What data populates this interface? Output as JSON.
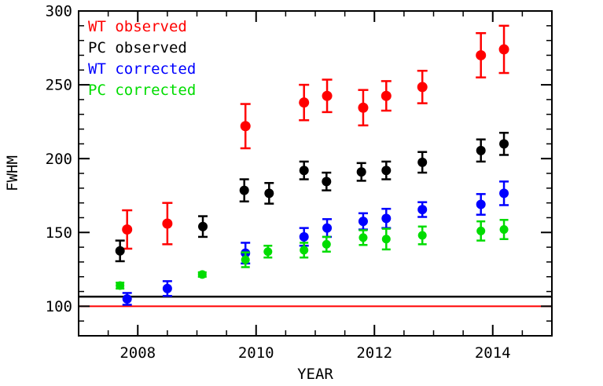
{
  "chart_data": {
    "type": "scatter",
    "title": "",
    "xlabel": "YEAR",
    "ylabel": "FWHM",
    "xlim": [
      2007,
      2015
    ],
    "ylim": [
      80,
      300
    ],
    "x_major_ticks": [
      2008,
      2010,
      2012,
      2014
    ],
    "x_minor_step": 0.5,
    "y_major_ticks": [
      100,
      150,
      200,
      250,
      300
    ],
    "y_minor_step": 10,
    "grid": false,
    "legend_position": "top-left-inside",
    "axis_color": "#000000",
    "background_color": "#ffffff",
    "reference_lines": [
      {
        "y": 106.5,
        "color": "#000000",
        "width": 2.5,
        "name": "black-reference-line"
      },
      {
        "y": 100.0,
        "color": "#ff0000",
        "width": 2.0,
        "name": "red-reference-line"
      }
    ],
    "series": [
      {
        "name": "WT observed",
        "color": "#ff0000",
        "marker": "circle",
        "marker_radius": 6.5,
        "points": [
          {
            "x": 2007.82,
            "y": 152.0,
            "err": 13.0
          },
          {
            "x": 2008.5,
            "y": 156.0,
            "err": 14.0
          },
          {
            "x": 2009.82,
            "y": 222.0,
            "err": 15.0
          },
          {
            "x": 2010.81,
            "y": 238.0,
            "err": 12.0
          },
          {
            "x": 2011.2,
            "y": 242.5,
            "err": 11.0
          },
          {
            "x": 2011.81,
            "y": 234.5,
            "err": 12.0
          },
          {
            "x": 2012.2,
            "y": 242.5,
            "err": 10.0
          },
          {
            "x": 2012.81,
            "y": 248.5,
            "err": 11.0
          },
          {
            "x": 2013.8,
            "y": 270.0,
            "err": 15.0
          },
          {
            "x": 2014.19,
            "y": 274.0,
            "err": 16.0
          }
        ]
      },
      {
        "name": "PC observed",
        "color": "#000000",
        "marker": "circle",
        "marker_radius": 6,
        "points": [
          {
            "x": 2007.7,
            "y": 137.5,
            "err": 7.0
          },
          {
            "x": 2009.1,
            "y": 154.0,
            "err": 7.0
          },
          {
            "x": 2009.8,
            "y": 178.5,
            "err": 7.5
          },
          {
            "x": 2010.22,
            "y": 176.5,
            "err": 7.0
          },
          {
            "x": 2010.81,
            "y": 192.0,
            "err": 6.0
          },
          {
            "x": 2011.19,
            "y": 184.5,
            "err": 6.0
          },
          {
            "x": 2011.78,
            "y": 191.0,
            "err": 6.0
          },
          {
            "x": 2012.2,
            "y": 192.0,
            "err": 6.0
          },
          {
            "x": 2012.81,
            "y": 197.5,
            "err": 7.0
          },
          {
            "x": 2013.8,
            "y": 205.5,
            "err": 7.5
          },
          {
            "x": 2014.19,
            "y": 210.0,
            "err": 7.5
          }
        ]
      },
      {
        "name": "WT corrected",
        "color": "#0000ff",
        "marker": "circle",
        "marker_radius": 6,
        "points": [
          {
            "x": 2007.82,
            "y": 105.0,
            "err": 4.0
          },
          {
            "x": 2008.5,
            "y": 112.0,
            "err": 5.0
          },
          {
            "x": 2009.82,
            "y": 136.0,
            "err": 7.0
          },
          {
            "x": 2010.81,
            "y": 147.0,
            "err": 6.0
          },
          {
            "x": 2011.2,
            "y": 153.0,
            "err": 6.0
          },
          {
            "x": 2011.81,
            "y": 157.5,
            "err": 5.5
          },
          {
            "x": 2012.2,
            "y": 159.5,
            "err": 6.5
          },
          {
            "x": 2012.81,
            "y": 165.5,
            "err": 5.0
          },
          {
            "x": 2013.8,
            "y": 169.0,
            "err": 7.0
          },
          {
            "x": 2014.19,
            "y": 176.5,
            "err": 8.0
          }
        ]
      },
      {
        "name": "PC corrected",
        "color": "#00dc00",
        "marker": "circle",
        "marker_radius": 5.5,
        "points": [
          {
            "x": 2007.7,
            "y": 114.0,
            "err": 2.0
          },
          {
            "x": 2009.09,
            "y": 121.5,
            "err": 1.5
          },
          {
            "x": 2009.82,
            "y": 131.5,
            "err": 5.0
          },
          {
            "x": 2010.2,
            "y": 137.0,
            "err": 4.0
          },
          {
            "x": 2010.81,
            "y": 138.0,
            "err": 5.0
          },
          {
            "x": 2011.19,
            "y": 142.0,
            "err": 5.0
          },
          {
            "x": 2011.81,
            "y": 146.5,
            "err": 5.0
          },
          {
            "x": 2012.2,
            "y": 145.5,
            "err": 7.0
          },
          {
            "x": 2012.81,
            "y": 148.0,
            "err": 6.0
          },
          {
            "x": 2013.8,
            "y": 151.0,
            "err": 6.5
          },
          {
            "x": 2014.19,
            "y": 152.0,
            "err": 6.5
          }
        ]
      }
    ]
  }
}
